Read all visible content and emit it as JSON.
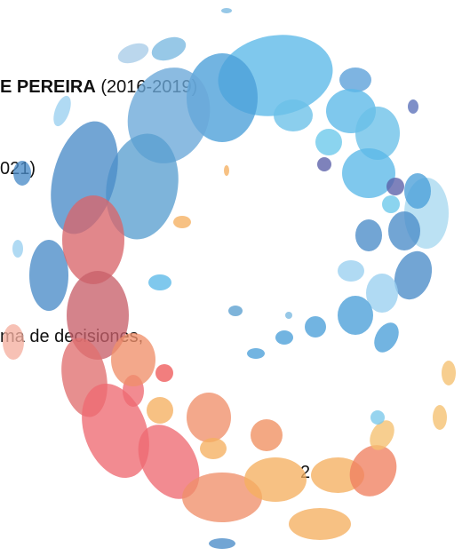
{
  "lines": [
    {
      "bold": "E PEREIRA",
      "text": " (2016-2019)"
    },
    {
      "text": "021)"
    },
    {
      "text": "ma de decisiones,"
    }
  ],
  "page_number": "2"
}
